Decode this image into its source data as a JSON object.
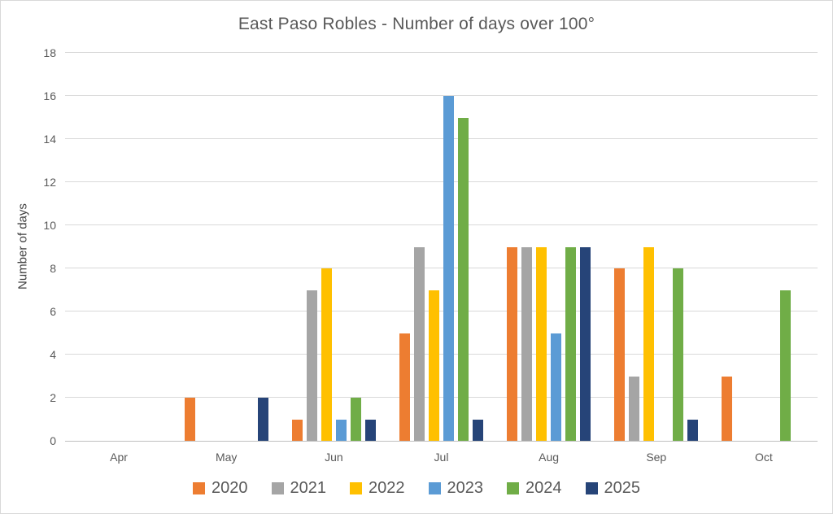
{
  "chart": {
    "title": "East Paso Robles - Number of days over 100°",
    "y_axis_title": "Number of days"
  },
  "chart_data": {
    "type": "bar",
    "title": "East Paso Robles - Number of days over 100°",
    "xlabel": "",
    "ylabel": "Number of days",
    "ylim": [
      0,
      18
    ],
    "ytick_step": 2,
    "grid": true,
    "legend_position": "bottom",
    "categories": [
      "Apr",
      "May",
      "Jun",
      "Jul",
      "Aug",
      "Sep",
      "Oct"
    ],
    "series": [
      {
        "name": "2020",
        "color": "#ED7D31",
        "values": [
          0,
          2,
          1,
          5,
          9,
          8,
          3
        ]
      },
      {
        "name": "2021",
        "color": "#A5A5A5",
        "values": [
          0,
          0,
          7,
          9,
          9,
          3,
          0
        ]
      },
      {
        "name": "2022",
        "color": "#FFC000",
        "values": [
          0,
          0,
          8,
          7,
          9,
          9,
          0
        ]
      },
      {
        "name": "2023",
        "color": "#5B9BD5",
        "values": [
          0,
          0,
          1,
          16,
          5,
          0,
          0
        ]
      },
      {
        "name": "2024",
        "color": "#70AD47",
        "values": [
          0,
          0,
          2,
          15,
          9,
          8,
          7
        ]
      },
      {
        "name": "2025",
        "color": "#264478",
        "values": [
          0,
          2,
          1,
          1,
          9,
          1,
          0
        ]
      }
    ],
    "colors": {
      "grid": "#D9D9D9",
      "axis_line": "#BFBFBF",
      "text": "#595959",
      "background": "#FFFFFF",
      "border": "#D9D9D9"
    }
  }
}
